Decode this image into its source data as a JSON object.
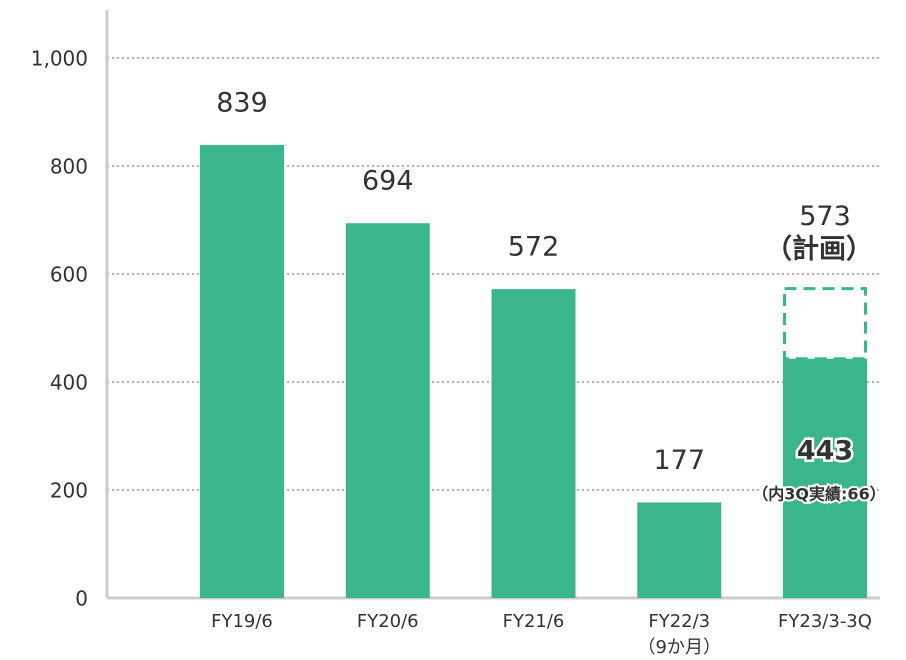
{
  "chart_data": {
    "type": "bar",
    "categories": [
      "FY19/6",
      "FY20/6",
      "FY21/6",
      "FY22/3",
      "FY23/3-3Q"
    ],
    "category_notes": [
      null,
      null,
      null,
      "（9か月）",
      null
    ],
    "values": [
      839,
      694,
      572,
      177,
      443
    ],
    "plan_values": [
      null,
      null,
      null,
      null,
      573
    ],
    "plan_label": "（計画）",
    "annotation": "（内3Q実績:66）",
    "color": "#3bb58c",
    "ylim": [
      0,
      1000
    ],
    "yticks": [
      0,
      200,
      400,
      600,
      800,
      {
        "value": 1000,
        "label": "1,000"
      }
    ],
    "grid": true
  }
}
